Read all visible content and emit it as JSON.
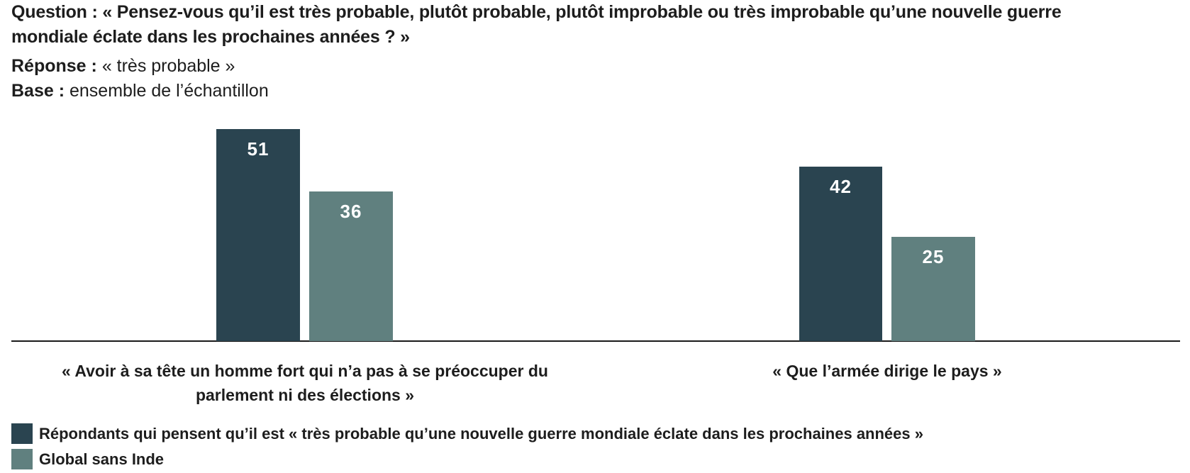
{
  "page": {
    "background": "#ffffff",
    "text_color": "#1d1d1d"
  },
  "header": {
    "question_label": "Question :",
    "question_text": "« Pensez-vous qu’il est très probable, plutôt probable, plutôt improbable ou très improbable qu’une nouvelle guerre mondiale éclate dans les prochaines années ? »",
    "response_label": "Réponse :",
    "response_text": "« très probable »",
    "base_label": "Base :",
    "base_text": "ensemble de l’échantillon"
  },
  "chart_data": {
    "type": "bar",
    "categories": [
      "« Avoir à sa tête un homme fort qui n’a pas à se préoccuper du parlement ni des élections »",
      "« Que l’armée dirige le pays »"
    ],
    "series": [
      {
        "name": "Répondants qui pensent qu’il est « très probable qu’une nouvelle guerre mondiale éclate dans les prochaines années »",
        "color": "#2a4450",
        "values": [
          51,
          42
        ]
      },
      {
        "name": "Global sans Inde",
        "color": "#60807f",
        "values": [
          36,
          25
        ]
      }
    ],
    "value_labels": {
      "position": "inside-top",
      "color": "#ffffff"
    },
    "ylim": [
      0,
      60
    ],
    "grid": false,
    "axis_line_color": "#1a1a1a",
    "legend_position": "bottom-left"
  }
}
